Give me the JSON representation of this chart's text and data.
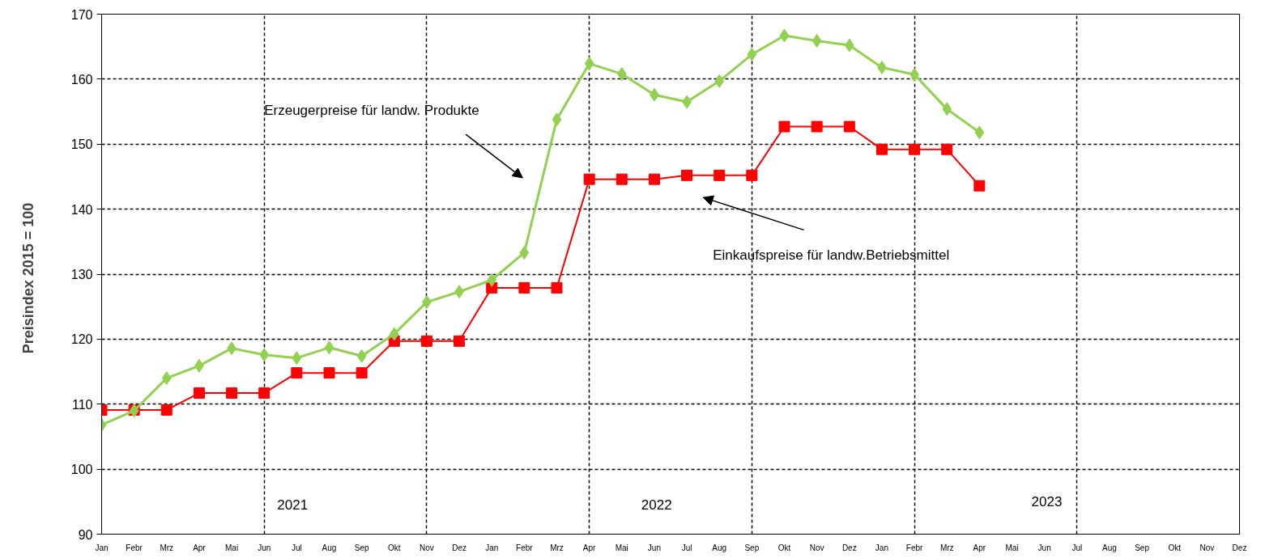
{
  "chart_data": {
    "type": "line",
    "ylabel": "Preisindex   2015 = 100",
    "categories": [
      "Jan",
      "Febr",
      "Mrz",
      "Apr",
      "Mai",
      "Jun",
      "Jul",
      "Aug",
      "Sep",
      "Okt",
      "Nov",
      "Dez",
      "Jan",
      "Febr",
      "Mrz",
      "Apr",
      "Mai",
      "Jun",
      "Jul",
      "Aug",
      "Sep",
      "Okt",
      "Nov",
      "Dez",
      "Jan",
      "Febr",
      "Mrz",
      "Apr",
      "Mai",
      "Jun",
      "Jul",
      "Aug",
      "Sep",
      "Okt",
      "Nov",
      "Dez"
    ],
    "series": [
      {
        "color": "#92d050",
        "marker": "diamond",
        "values": [
          106.8,
          109.0,
          114.0,
          115.9,
          118.6,
          117.6,
          117.1,
          118.7,
          117.4,
          120.8,
          125.7,
          127.3,
          129.1,
          133.3,
          153.8,
          162.4,
          160.8,
          157.6,
          156.5,
          159.7,
          163.8,
          166.7,
          165.9,
          165.2,
          161.8,
          160.7,
          155.4,
          151.8,
          null,
          null,
          null,
          null,
          null,
          null,
          null,
          null
        ]
      },
      {
        "color": "#ff0000",
        "marker": "square",
        "values": [
          109.1,
          109.1,
          109.1,
          111.7,
          111.7,
          111.7,
          114.8,
          114.8,
          114.8,
          119.7,
          119.7,
          119.7,
          127.9,
          127.9,
          127.9,
          144.6,
          144.6,
          144.6,
          145.2,
          145.2,
          145.2,
          152.7,
          152.7,
          152.7,
          149.2,
          149.2,
          149.2,
          143.6,
          null,
          null,
          null,
          null,
          null,
          null,
          null,
          null
        ]
      }
    ],
    "ylim": [
      90,
      170
    ],
    "yticks": [
      90,
      100,
      110,
      120,
      130,
      140,
      150,
      160,
      170
    ],
    "grid": true,
    "annotations": [
      "2021",
      "2022",
      "2023",
      "Erzeugerpreise für landw. Produkte",
      "Einkaufspreise für  landw.Betriebsmittel"
    ]
  }
}
